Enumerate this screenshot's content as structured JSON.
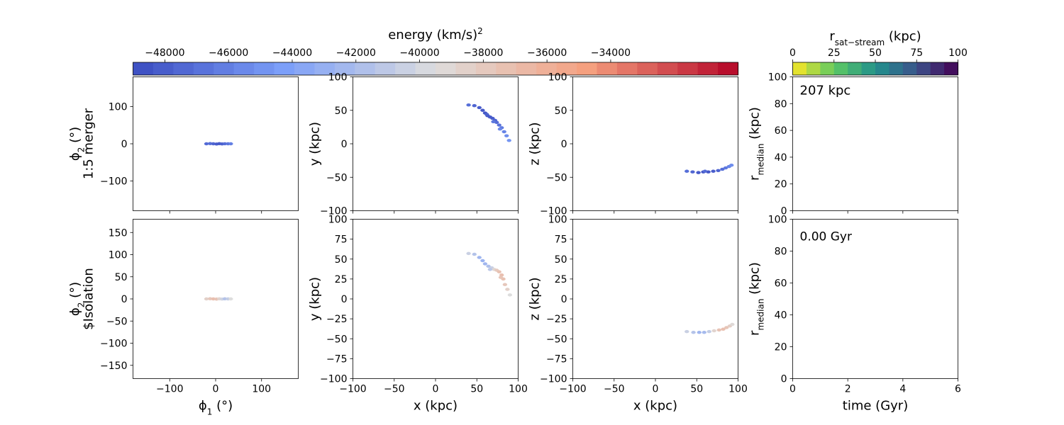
{
  "colorbars": {
    "energy": {
      "label": "energy (km/s)",
      "label_sup": "2",
      "range": [
        -49000,
        -30000
      ],
      "ticks": [
        -48000,
        -46000,
        -44000,
        -42000,
        -40000,
        -38000,
        -36000,
        -34000
      ],
      "tick_labels": [
        "−48000",
        "−46000",
        "−44000",
        "−42000",
        "−40000",
        "−38000",
        "−36000",
        "−34000"
      ],
      "colormap": "coolwarm",
      "bands": 30
    },
    "rsat": {
      "label_main": "r",
      "label_sub": "sat−stream",
      "label_unit": " (kpc)",
      "range": [
        0,
        100
      ],
      "ticks": [
        0,
        25,
        50,
        75,
        100
      ],
      "tick_labels": [
        "0",
        "25",
        "50",
        "75",
        "100"
      ],
      "colormap": "viridis_r",
      "bands": 12
    }
  },
  "chart_data": [
    {
      "type": "scatter",
      "row": 0,
      "col": 0,
      "ylabel_main": "ϕ",
      "ylabel_sub": "2",
      "ylabel_unit": " (°)",
      "row_label": "1:5 merger",
      "xlim": [
        -180,
        180
      ],
      "ylim": [
        -180,
        180
      ],
      "xticks": [
        -100,
        0,
        100
      ],
      "yticks": [
        -100,
        0,
        100
      ],
      "yticklabels": [
        "−100",
        "0",
        "100"
      ],
      "show_xticklabels": false,
      "points": [
        {
          "x": -20,
          "y": 0,
          "e": -47200
        },
        {
          "x": -12,
          "y": 0.5,
          "e": -47000
        },
        {
          "x": -5,
          "y": 0,
          "e": -47500
        },
        {
          "x": 2,
          "y": -0.5,
          "e": -48000
        },
        {
          "x": 8,
          "y": 0.4,
          "e": -48200
        },
        {
          "x": 14,
          "y": -0.3,
          "e": -47800
        },
        {
          "x": 20,
          "y": 0.2,
          "e": -47100
        },
        {
          "x": 27,
          "y": 0,
          "e": -46600
        },
        {
          "x": 33,
          "y": 0,
          "e": -46000
        }
      ]
    },
    {
      "type": "scatter",
      "row": 0,
      "col": 1,
      "ylabel": "y (kpc)",
      "xlim": [
        -100,
        100
      ],
      "ylim": [
        -100,
        100
      ],
      "xticks": [
        -100,
        -50,
        0,
        50,
        100
      ],
      "yticks": [
        -100,
        -50,
        0,
        50,
        100
      ],
      "yticklabels": [
        "−100",
        "−50",
        "0",
        "50",
        "100"
      ],
      "show_xticklabels": false,
      "points": [
        {
          "x": 40,
          "y": 58,
          "e": -47000
        },
        {
          "x": 47,
          "y": 57,
          "e": -47500
        },
        {
          "x": 53,
          "y": 54,
          "e": -48000
        },
        {
          "x": 57,
          "y": 50,
          "e": -48300
        },
        {
          "x": 60,
          "y": 46,
          "e": -48500
        },
        {
          "x": 63,
          "y": 42,
          "e": -48400
        },
        {
          "x": 66,
          "y": 40,
          "e": -48200
        },
        {
          "x": 69,
          "y": 38,
          "e": -48000
        },
        {
          "x": 72,
          "y": 35,
          "e": -47600
        },
        {
          "x": 74,
          "y": 32,
          "e": -47200
        },
        {
          "x": 77,
          "y": 28,
          "e": -46800
        },
        {
          "x": 80,
          "y": 24,
          "e": -46300
        },
        {
          "x": 83,
          "y": 18,
          "e": -45800
        },
        {
          "x": 86,
          "y": 12,
          "e": -45300
        },
        {
          "x": 89,
          "y": 5,
          "e": -44800
        },
        {
          "x": 62,
          "y": 44,
          "e": -47800
        },
        {
          "x": 70,
          "y": 33,
          "e": -46500
        },
        {
          "x": 78,
          "y": 22,
          "e": -45500
        }
      ]
    },
    {
      "type": "scatter",
      "row": 0,
      "col": 2,
      "ylabel": "z (kpc)",
      "xlim": [
        -100,
        100
      ],
      "ylim": [
        -100,
        100
      ],
      "xticks": [
        -100,
        -50,
        0,
        50,
        100
      ],
      "yticks": [
        -100,
        -50,
        0,
        50,
        100
      ],
      "yticklabels": [
        "−100",
        "−50",
        "0",
        "50",
        "100"
      ],
      "show_xticklabels": false,
      "points": [
        {
          "x": 38,
          "y": -41,
          "e": -47000
        },
        {
          "x": 45,
          "y": -42,
          "e": -47500
        },
        {
          "x": 52,
          "y": -43,
          "e": -48200
        },
        {
          "x": 58,
          "y": -42,
          "e": -48500
        },
        {
          "x": 64,
          "y": -42,
          "e": -48400
        },
        {
          "x": 70,
          "y": -41,
          "e": -48000
        },
        {
          "x": 76,
          "y": -40,
          "e": -47600
        },
        {
          "x": 81,
          "y": -38,
          "e": -47000
        },
        {
          "x": 85,
          "y": -36,
          "e": -46400
        },
        {
          "x": 89,
          "y": -34,
          "e": -45800
        },
        {
          "x": 92,
          "y": -32,
          "e": -45200
        },
        {
          "x": 60,
          "y": -41,
          "e": -47200
        }
      ]
    },
    {
      "type": "line",
      "row": 0,
      "col": 3,
      "ylabel_main": "r",
      "ylabel_sub": "median",
      "ylabel_unit": " (kpc)",
      "annotation": "207 kpc",
      "xlim": [
        0,
        6
      ],
      "ylim": [
        0,
        100
      ],
      "xticks": [
        0,
        2,
        4,
        6
      ],
      "yticks": [
        0,
        20,
        40,
        60,
        80,
        100
      ],
      "yticklabels": [
        "0",
        "20",
        "40",
        "60",
        "80",
        "100"
      ],
      "show_xticklabels": false,
      "points": []
    },
    {
      "type": "scatter",
      "row": 1,
      "col": 0,
      "ylabel_main": "ϕ",
      "ylabel_sub": "2",
      "ylabel_unit": " (°)",
      "row_label": "$Isolation",
      "xlabel_main": "ϕ",
      "xlabel_sub": "1",
      "xlabel_unit": " (°)",
      "xlim": [
        -180,
        180
      ],
      "ylim": [
        -180,
        180
      ],
      "xticks": [
        -100,
        0,
        100
      ],
      "yticks": [
        -150,
        -100,
        -50,
        0,
        50,
        100,
        150
      ],
      "xticklabels": [
        "−100",
        "0",
        "100"
      ],
      "yticklabels": [
        "−150",
        "−100",
        "−50",
        "0",
        "50",
        "100",
        "150"
      ],
      "show_xticklabels": true,
      "points": [
        {
          "x": -20,
          "y": 0,
          "e": -38500
        },
        {
          "x": -12,
          "y": 0.4,
          "e": -37800
        },
        {
          "x": -5,
          "y": 0,
          "e": -37200
        },
        {
          "x": 2,
          "y": -0.4,
          "e": -37500
        },
        {
          "x": 8,
          "y": 0.3,
          "e": -38800
        },
        {
          "x": 14,
          "y": -0.3,
          "e": -40200
        },
        {
          "x": 20,
          "y": 0.2,
          "e": -41500
        },
        {
          "x": 27,
          "y": 0,
          "e": -40800
        },
        {
          "x": 33,
          "y": 0,
          "e": -39500
        }
      ]
    },
    {
      "type": "scatter",
      "row": 1,
      "col": 1,
      "ylabel": "y (kpc)",
      "xlabel": "x (kpc)",
      "xlim": [
        -100,
        100
      ],
      "ylim": [
        -100,
        100
      ],
      "xticks": [
        -100,
        -50,
        0,
        50,
        100
      ],
      "yticks": [
        -100,
        -75,
        -50,
        -25,
        0,
        25,
        50,
        75,
        100
      ],
      "xticklabels": [
        "−100",
        "−50",
        "0",
        "50",
        "100"
      ],
      "yticklabels": [
        "−100",
        "−75",
        "−50",
        "−25",
        "0",
        "25",
        "50",
        "75",
        "100"
      ],
      "show_xticklabels": true,
      "points": [
        {
          "x": 40,
          "y": 57,
          "e": -40500
        },
        {
          "x": 47,
          "y": 56,
          "e": -41500
        },
        {
          "x": 53,
          "y": 52,
          "e": -42500
        },
        {
          "x": 57,
          "y": 48,
          "e": -42800
        },
        {
          "x": 60,
          "y": 44,
          "e": -42500
        },
        {
          "x": 64,
          "y": 41,
          "e": -41800
        },
        {
          "x": 68,
          "y": 39,
          "e": -40500
        },
        {
          "x": 71,
          "y": 37,
          "e": -39000
        },
        {
          "x": 74,
          "y": 36,
          "e": -38000
        },
        {
          "x": 77,
          "y": 34,
          "e": -37400
        },
        {
          "x": 80,
          "y": 30,
          "e": -37200
        },
        {
          "x": 82,
          "y": 25,
          "e": -37300
        },
        {
          "x": 84,
          "y": 18,
          "e": -37800
        },
        {
          "x": 87,
          "y": 12,
          "e": -38500
        },
        {
          "x": 90,
          "y": 5,
          "e": -39500
        },
        {
          "x": 66,
          "y": 37,
          "e": -41200
        },
        {
          "x": 79,
          "y": 27,
          "e": -37600
        }
      ]
    },
    {
      "type": "scatter",
      "row": 1,
      "col": 2,
      "ylabel": "z (kpc)",
      "xlabel": "x (kpc)",
      "xlim": [
        -100,
        100
      ],
      "ylim": [
        -100,
        100
      ],
      "xticks": [
        -100,
        -50,
        0,
        50,
        100
      ],
      "yticks": [
        -100,
        -75,
        -50,
        -25,
        0,
        25,
        50,
        75,
        100
      ],
      "xticklabels": [
        "−100",
        "−50",
        "0",
        "50",
        "100"
      ],
      "yticklabels": [
        "−100",
        "−75",
        "−50",
        "−25",
        "0",
        "25",
        "50",
        "75",
        "100"
      ],
      "show_xticklabels": true,
      "points": [
        {
          "x": 38,
          "y": -41,
          "e": -40500
        },
        {
          "x": 46,
          "y": -42,
          "e": -41500
        },
        {
          "x": 53,
          "y": -42,
          "e": -42500
        },
        {
          "x": 59,
          "y": -42,
          "e": -42200
        },
        {
          "x": 65,
          "y": -41,
          "e": -40800
        },
        {
          "x": 71,
          "y": -40,
          "e": -38800
        },
        {
          "x": 77,
          "y": -39,
          "e": -37500
        },
        {
          "x": 82,
          "y": -38,
          "e": -37200
        },
        {
          "x": 86,
          "y": -36,
          "e": -37600
        },
        {
          "x": 90,
          "y": -34,
          "e": -38300
        },
        {
          "x": 93,
          "y": -32,
          "e": -39200
        }
      ]
    },
    {
      "type": "line",
      "row": 1,
      "col": 3,
      "ylabel_main": "r",
      "ylabel_sub": "median",
      "ylabel_unit": " (kpc)",
      "xlabel": "time (Gyr)",
      "annotation": "0.00 Gyr",
      "xlim": [
        0,
        6
      ],
      "ylim": [
        0,
        100
      ],
      "xticks": [
        0,
        2,
        4,
        6
      ],
      "yticks": [
        0,
        20,
        40,
        60,
        80,
        100
      ],
      "xticklabels": [
        "0",
        "2",
        "4",
        "6"
      ],
      "yticklabels": [
        "0",
        "20",
        "40",
        "60",
        "80",
        "100"
      ],
      "show_xticklabels": true,
      "points": []
    }
  ]
}
